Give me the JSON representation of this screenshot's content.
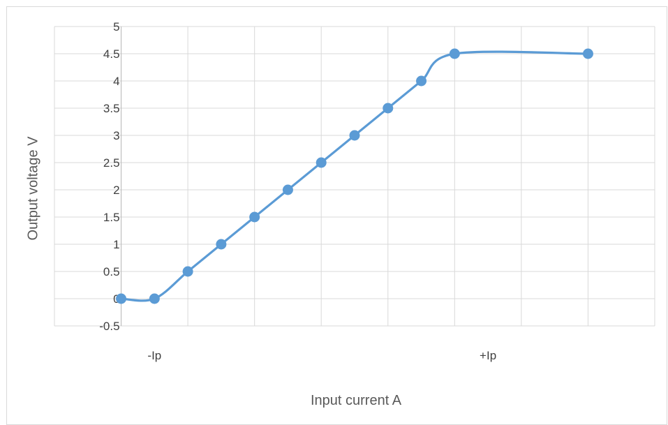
{
  "chart_data": {
    "type": "scatter",
    "style": "smooth-line-with-markers",
    "xlabel": "Input current A",
    "ylabel": "Output voltage V",
    "ylim": [
      -0.5,
      5
    ],
    "y_ticks": [
      "5",
      "4.5",
      "4",
      "3.5",
      "3",
      "2.5",
      "2",
      "1.5",
      "1",
      "0.5",
      "0",
      "-0.5"
    ],
    "x_range": [
      -1,
      8
    ],
    "x_category_labels": [
      {
        "label": "-Ip",
        "x": 0.5
      },
      {
        "label": "+Ip",
        "x": 5.5
      }
    ],
    "series": [
      {
        "color": "#5b9bd5",
        "points": [
          {
            "x": 0,
            "y": 0
          },
          {
            "x": 0.5,
            "y": 0
          },
          {
            "x": 1,
            "y": 0.5
          },
          {
            "x": 1.5,
            "y": 1
          },
          {
            "x": 2,
            "y": 1.5
          },
          {
            "x": 2.5,
            "y": 2
          },
          {
            "x": 3,
            "y": 2.5
          },
          {
            "x": 3.5,
            "y": 3
          },
          {
            "x": 4,
            "y": 3.5
          },
          {
            "x": 4.5,
            "y": 4
          },
          {
            "x": 5,
            "y": 4.5
          },
          {
            "x": 7,
            "y": 4.5
          }
        ]
      }
    ],
    "grid": true,
    "legend": "none"
  }
}
